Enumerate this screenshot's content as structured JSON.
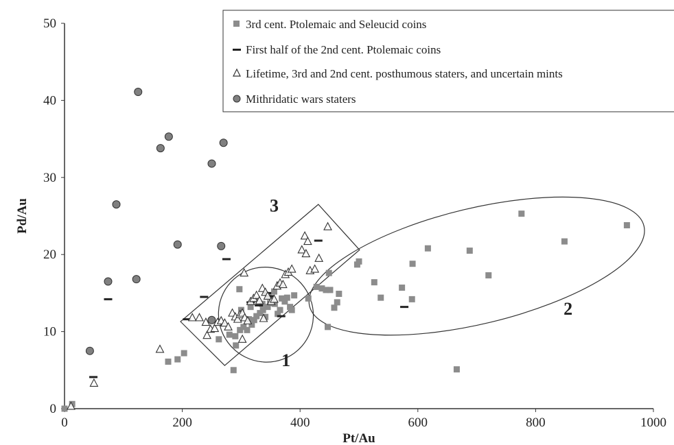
{
  "chart_data": {
    "type": "scatter",
    "xlabel": "Pt/Au",
    "ylabel": "Pd/Au",
    "xlim": [
      0,
      1000
    ],
    "ylim": [
      0,
      50
    ],
    "x_ticks": [
      0,
      200,
      400,
      600,
      800,
      1000
    ],
    "y_ticks": [
      0,
      10,
      20,
      30,
      40,
      50
    ],
    "grid": false,
    "legend_position": "top-right",
    "colors": {
      "square": "#8c8c8c",
      "circle": "#808080",
      "stroke": "#333333",
      "dash": "#222222"
    },
    "series": [
      {
        "name": "3rd cent. Ptolemaic and Seleucid coins",
        "marker": "square",
        "points": [
          [
            0,
            0
          ],
          [
            13,
            0.6
          ],
          [
            176,
            6.1
          ],
          [
            192,
            6.4
          ],
          [
            203,
            7.2
          ],
          [
            287,
            5
          ],
          [
            291,
            8.2
          ],
          [
            262,
            9
          ],
          [
            280,
            9.6
          ],
          [
            290,
            9.4
          ],
          [
            298,
            10.2
          ],
          [
            304,
            10.6
          ],
          [
            310,
            10.2
          ],
          [
            313,
            11.6
          ],
          [
            318,
            10.9
          ],
          [
            322,
            11.5
          ],
          [
            326,
            12
          ],
          [
            332,
            12.4
          ],
          [
            337,
            12.8
          ],
          [
            341,
            11.9
          ],
          [
            345,
            13.2
          ],
          [
            349,
            13.7
          ],
          [
            353,
            14.1
          ],
          [
            357,
            13.6
          ],
          [
            362,
            12.3
          ],
          [
            366,
            12.8
          ],
          [
            369,
            14.3
          ],
          [
            374,
            13.9
          ],
          [
            378,
            14.4
          ],
          [
            383,
            13.2
          ],
          [
            386,
            12.8
          ],
          [
            390,
            14.7
          ],
          [
            297,
            15.5
          ],
          [
            300,
            12.8
          ],
          [
            316,
            13.2
          ],
          [
            326,
            14.2
          ],
          [
            336,
            13.6
          ],
          [
            346,
            14.6
          ],
          [
            356,
            15.2
          ],
          [
            365,
            16.1
          ],
          [
            414,
            14.3
          ],
          [
            428,
            15.8
          ],
          [
            437,
            15.6
          ],
          [
            444,
            15.4
          ],
          [
            451,
            15.4
          ],
          [
            449,
            17.6
          ],
          [
            458,
            13.1
          ],
          [
            463,
            13.8
          ],
          [
            466,
            14.9
          ],
          [
            447,
            10.6
          ],
          [
            497,
            18.7
          ],
          [
            500,
            19.1
          ],
          [
            526,
            16.4
          ],
          [
            537,
            14.4
          ],
          [
            573,
            15.7
          ],
          [
            590,
            14.2
          ],
          [
            591,
            18.8
          ],
          [
            617,
            20.8
          ],
          [
            666,
            5.1
          ],
          [
            688,
            20.5
          ],
          [
            720,
            17.3
          ],
          [
            776,
            25.3
          ],
          [
            849,
            21.7
          ],
          [
            955,
            23.8
          ]
        ]
      },
      {
        "name": "First half of the 2nd cent. Ptolemaic coins",
        "marker": "dash",
        "points": [
          [
            49,
            4.1
          ],
          [
            74,
            14.2
          ],
          [
            208,
            11.6
          ],
          [
            237,
            14.5
          ],
          [
            275,
            19.4
          ],
          [
            431,
            21.8
          ],
          [
            344,
            15
          ],
          [
            316,
            13.8
          ],
          [
            330,
            13.4
          ],
          [
            349,
            14.6
          ],
          [
            368,
            12
          ],
          [
            577,
            13.2
          ]
        ]
      },
      {
        "name": "Lifetime, 3rd and 2nd cent. posthumous staters, and uncertain mints",
        "marker": "triangle",
        "points": [
          [
            11,
            0.3
          ],
          [
            50,
            3.3
          ],
          [
            162,
            7.7
          ],
          [
            217,
            11.8
          ],
          [
            229,
            11.8
          ],
          [
            240,
            11.2
          ],
          [
            242,
            9.5
          ],
          [
            248,
            10.3
          ],
          [
            255,
            10.4
          ],
          [
            260,
            11.2
          ],
          [
            266,
            11.4
          ],
          [
            272,
            11.1
          ],
          [
            278,
            10.6
          ],
          [
            285,
            12.4
          ],
          [
            290,
            11.9
          ],
          [
            294,
            11.6
          ],
          [
            298,
            12.2
          ],
          [
            302,
            12.4
          ],
          [
            306,
            11.8
          ],
          [
            311,
            11.4
          ],
          [
            316,
            13.9
          ],
          [
            321,
            14.3
          ],
          [
            326,
            14.7
          ],
          [
            331,
            14
          ],
          [
            336,
            15.6
          ],
          [
            341,
            15.1
          ],
          [
            345,
            14.6
          ],
          [
            351,
            13.9
          ],
          [
            356,
            14.2
          ],
          [
            361,
            15.9
          ],
          [
            366,
            16.3
          ],
          [
            371,
            16.1
          ],
          [
            375,
            17.4
          ],
          [
            380,
            17.7
          ],
          [
            386,
            18.1
          ],
          [
            302,
            9
          ],
          [
            338,
            11.7
          ],
          [
            305,
            17.6
          ],
          [
            403,
            20.6
          ],
          [
            408,
            22.4
          ],
          [
            410,
            20.1
          ],
          [
            413,
            21.7
          ],
          [
            417,
            17.9
          ],
          [
            425,
            18.1
          ],
          [
            432,
            19.5
          ],
          [
            447,
            23.6
          ]
        ]
      },
      {
        "name": "Mithridatic wars staters",
        "marker": "circle",
        "points": [
          [
            43,
            7.5
          ],
          [
            74,
            16.5
          ],
          [
            88,
            26.5
          ],
          [
            122,
            16.8
          ],
          [
            125,
            41.1
          ],
          [
            163,
            33.8
          ],
          [
            177,
            35.3
          ],
          [
            192,
            21.3
          ],
          [
            250,
            31.8
          ],
          [
            266,
            21.1
          ],
          [
            270,
            34.5
          ],
          [
            250,
            11.5
          ]
        ]
      }
    ],
    "annotations": [
      {
        "label": "1",
        "x": 376,
        "y": 5.5
      },
      {
        "label": "2",
        "x": 855,
        "y": 12.2
      },
      {
        "label": "3",
        "x": 356,
        "y": 25.6
      }
    ],
    "regions": {
      "region1_ellipse": {
        "cx": 342,
        "cy": 12.2,
        "rx": 80,
        "ry": 6.2,
        "rotate": -42
      },
      "region2_ellipse": {
        "cx": 700,
        "cy": 18.5,
        "rx": 292,
        "ry": 7.5,
        "rotate": -13.5
      },
      "region3_rect": [
        [
          197,
          11.3
        ],
        [
          272,
          5.6
        ],
        [
          501,
          20.6
        ],
        [
          431,
          26.5
        ]
      ]
    }
  }
}
